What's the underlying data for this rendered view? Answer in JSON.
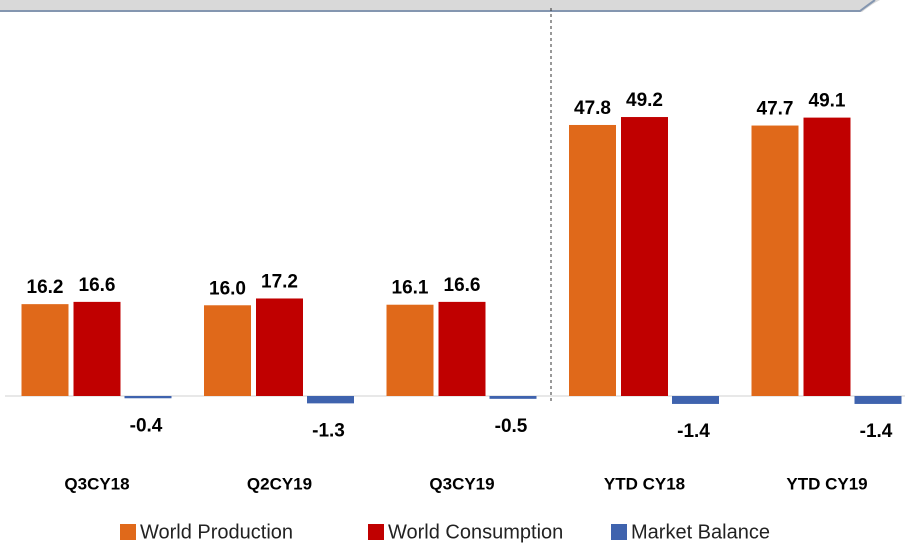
{
  "chart_data": {
    "type": "bar",
    "categories": [
      "Q3CY18",
      "Q2CY19",
      "Q3CY19",
      "YTD CY18",
      "YTD CY19"
    ],
    "series": [
      {
        "name": "World Production",
        "color": "#E0691A",
        "values": [
          16.2,
          16.0,
          16.1,
          47.8,
          47.7
        ],
        "value_labels": [
          "16.2",
          "16.0",
          "16.1",
          "47.8",
          "47.7"
        ]
      },
      {
        "name": "World Consumption",
        "color": "#C00000",
        "values": [
          16.6,
          17.2,
          16.6,
          49.2,
          49.1
        ],
        "value_labels": [
          "16.6",
          "17.2",
          "16.6",
          "49.2",
          "49.1"
        ]
      },
      {
        "name": "Market Balance",
        "color": "#3F63AE",
        "values": [
          -0.4,
          -1.3,
          -0.5,
          -1.4,
          -1.4
        ],
        "value_labels": [
          "-0.4",
          "-1.3",
          "-0.5",
          "-1.4",
          "-1.4"
        ]
      }
    ],
    "legend": "bottom"
  }
}
